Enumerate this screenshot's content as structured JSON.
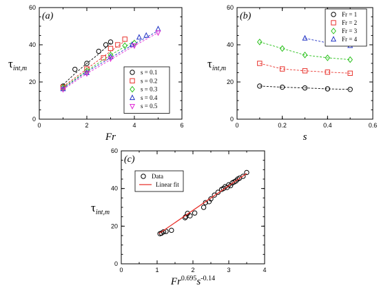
{
  "chart_data": [
    {
      "type": "scatter",
      "panel_label": "(a)",
      "xlabel": "Fr",
      "ylabel": {
        "main": "τ",
        "sub": "int,m"
      },
      "xlim": [
        0,
        6
      ],
      "ylim": [
        0,
        60
      ],
      "xticks": [
        0,
        2,
        4,
        6
      ],
      "yticks": [
        0,
        20,
        40,
        60
      ],
      "grid": false,
      "legend_position": "lower-right",
      "series": [
        {
          "name": "s = 0.1",
          "marker": "circle",
          "color": "#000000",
          "x": [
            1,
            1.5,
            2,
            2.5,
            2.8,
            3
          ],
          "y": [
            17.8,
            26.8,
            30,
            36.5,
            40,
            41.5
          ],
          "fit": [
            [
              1,
              18.5
            ],
            [
              1.5,
              24.5
            ],
            [
              2,
              30
            ],
            [
              2.5,
              35
            ],
            [
              3,
              41
            ]
          ]
        },
        {
          "name": "s = 0.2",
          "marker": "square",
          "color": "#e8302a",
          "x": [
            1,
            2,
            2.7,
            3,
            3.3,
            3.6
          ],
          "y": [
            17.2,
            27,
            33,
            38,
            40,
            43
          ],
          "fit": [
            [
              1,
              17.5
            ],
            [
              2,
              27
            ],
            [
              3,
              36.5
            ],
            [
              3.6,
              42
            ]
          ]
        },
        {
          "name": "s = 0.3",
          "marker": "diamond",
          "color": "#2bc11d",
          "x": [
            1,
            2,
            3,
            3.6,
            4
          ],
          "y": [
            17,
            26,
            34.5,
            39.5,
            41
          ],
          "fit": [
            [
              1,
              17
            ],
            [
              2,
              26
            ],
            [
              3,
              34.5
            ],
            [
              4,
              42
            ]
          ]
        },
        {
          "name": "s = 0.4",
          "marker": "triangle-up",
          "color": "#1f31c4",
          "x": [
            1,
            2,
            3,
            3.9,
            4.2,
            4.5,
            5
          ],
          "y": [
            16.3,
            25,
            33.5,
            40,
            44,
            45,
            48.5
          ],
          "fit": [
            [
              1,
              16.5
            ],
            [
              2,
              25.5
            ],
            [
              3,
              33
            ],
            [
              4,
              40.5
            ],
            [
              5,
              47.5
            ]
          ]
        },
        {
          "name": "s = 0.5",
          "marker": "triangle-down",
          "color": "#e02ad6",
          "x": [
            1,
            2,
            3,
            4,
            5
          ],
          "y": [
            16,
            24.5,
            32.5,
            39.5,
            46.5
          ],
          "fit": [
            [
              1,
              16
            ],
            [
              2,
              24.5
            ],
            [
              3,
              32
            ],
            [
              4,
              39.5
            ],
            [
              5,
              46.5
            ]
          ]
        }
      ]
    },
    {
      "type": "scatter",
      "panel_label": "(b)",
      "xlabel": "s",
      "ylabel": {
        "main": "τ",
        "sub": "int,m"
      },
      "xlim": [
        0,
        0.6
      ],
      "ylim": [
        0,
        60
      ],
      "xticks": [
        0,
        0.2,
        0.4,
        0.6
      ],
      "yticks": [
        0,
        20,
        40,
        60
      ],
      "grid": false,
      "legend_position": "top-right",
      "series": [
        {
          "name": "Fr = 1",
          "marker": "circle",
          "color": "#000000",
          "x": [
            0.1,
            0.2,
            0.3,
            0.4,
            0.5
          ],
          "y": [
            17.8,
            17.2,
            16.8,
            16.3,
            16
          ]
        },
        {
          "name": "Fr = 2",
          "marker": "square",
          "color": "#e8302a",
          "x": [
            0.1,
            0.2,
            0.3,
            0.4,
            0.5
          ],
          "y": [
            30,
            27,
            26,
            25.3,
            24.7
          ]
        },
        {
          "name": "Fr = 3",
          "marker": "diamond",
          "color": "#2bc11d",
          "x": [
            0.1,
            0.2,
            0.3,
            0.4,
            0.5
          ],
          "y": [
            41.5,
            38,
            34.5,
            33,
            32
          ]
        },
        {
          "name": "Fr = 4",
          "marker": "triangle-up",
          "color": "#1f31c4",
          "x": [
            0.3,
            0.4,
            0.5
          ],
          "y": [
            43.5,
            41,
            39.5
          ]
        }
      ]
    },
    {
      "type": "scatter",
      "panel_label": "(c)",
      "xlabel": {
        "base": "Fr",
        "exp1": "0.695",
        "mid": "s",
        "exp2": "-0.14"
      },
      "ylabel": {
        "main": "τ",
        "sub": "int,m"
      },
      "xlim": [
        0,
        4
      ],
      "ylim": [
        0,
        60
      ],
      "xticks": [
        0,
        1,
        2,
        3,
        4
      ],
      "yticks": [
        0,
        20,
        40,
        60
      ],
      "grid": false,
      "legend_position": "top-left",
      "series": [
        {
          "name": "Data",
          "marker": "circle",
          "color": "#000000",
          "x": [
            1.08,
            1.12,
            1.18,
            1.25,
            1.4,
            1.78,
            1.8,
            1.85,
            1.92,
            2.05,
            2.3,
            2.35,
            2.45,
            2.5,
            2.6,
            2.7,
            2.8,
            2.85,
            2.9,
            2.95,
            3.0,
            3.05,
            3.1,
            3.15,
            3.2,
            3.25,
            3.3,
            3.4,
            3.5
          ],
          "y": [
            16,
            16.3,
            17,
            17.2,
            17.8,
            24.5,
            25,
            26.8,
            25.5,
            27,
            30,
            32.5,
            33,
            34.5,
            36.5,
            38,
            39.5,
            40,
            41,
            40.5,
            42,
            41.5,
            43,
            43.5,
            44,
            45,
            45.5,
            46.5,
            48.5
          ]
        },
        {
          "name": "Linear fit",
          "line": true,
          "color": "#e8302a",
          "x": [
            1.05,
            3.5
          ],
          "y": [
            16,
            48
          ]
        }
      ]
    }
  ]
}
